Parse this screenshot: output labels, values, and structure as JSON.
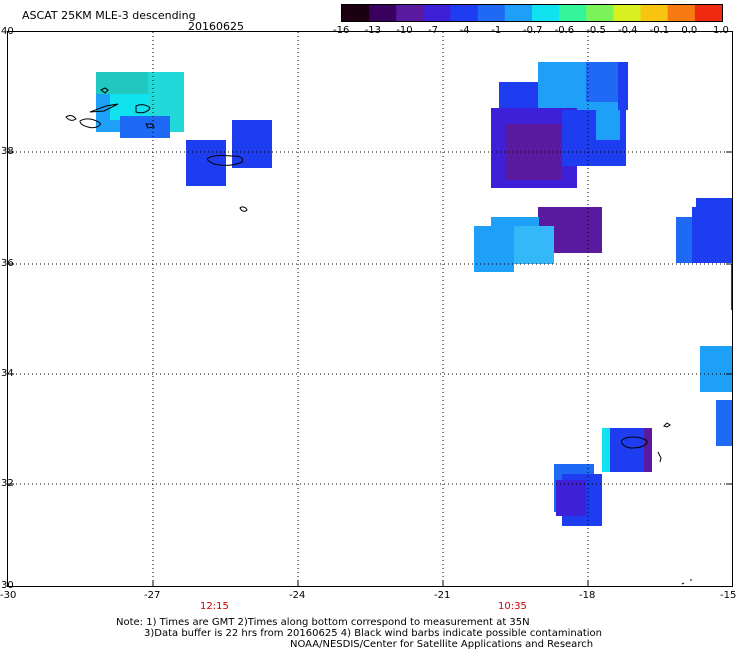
{
  "header": {
    "title": "ASCAT 25KM MLE-3 descending",
    "date": "20160625"
  },
  "colorbar": {
    "colors": [
      "#1a0010",
      "#3a0060",
      "#5a1aa0",
      "#3d20d8",
      "#1e3cf0",
      "#1f6af5",
      "#1ea0f8",
      "#10e2ef",
      "#35f59a",
      "#7df35a",
      "#d8ef20",
      "#f7c410",
      "#f87a10",
      "#f02a10"
    ],
    "ticks": [
      "-16",
      "-13",
      "-10",
      "-7",
      "-4",
      "-1",
      "-0.7",
      "-0.6",
      "-0.5",
      "-0.4",
      "-0.1",
      "0.0",
      "1.0"
    ]
  },
  "axes": {
    "y_ticks": [
      "40",
      "38",
      "36",
      "34",
      "32",
      "30"
    ],
    "x_ticks": [
      "-30",
      "-27",
      "-24",
      "-21",
      "-18",
      "-15"
    ]
  },
  "pass_times": [
    "12:15",
    "10:35"
  ],
  "notes": {
    "line1": "Note: 1) Times are GMT 2)Times along bottom correspond to measurement at 35N",
    "line2": "3)Data buffer is 22 hrs from 20160625 4) Black wind barbs indicate possible contamination",
    "line3": "NOAA/NESDIS/Center for Satellite Applications and Research"
  }
}
